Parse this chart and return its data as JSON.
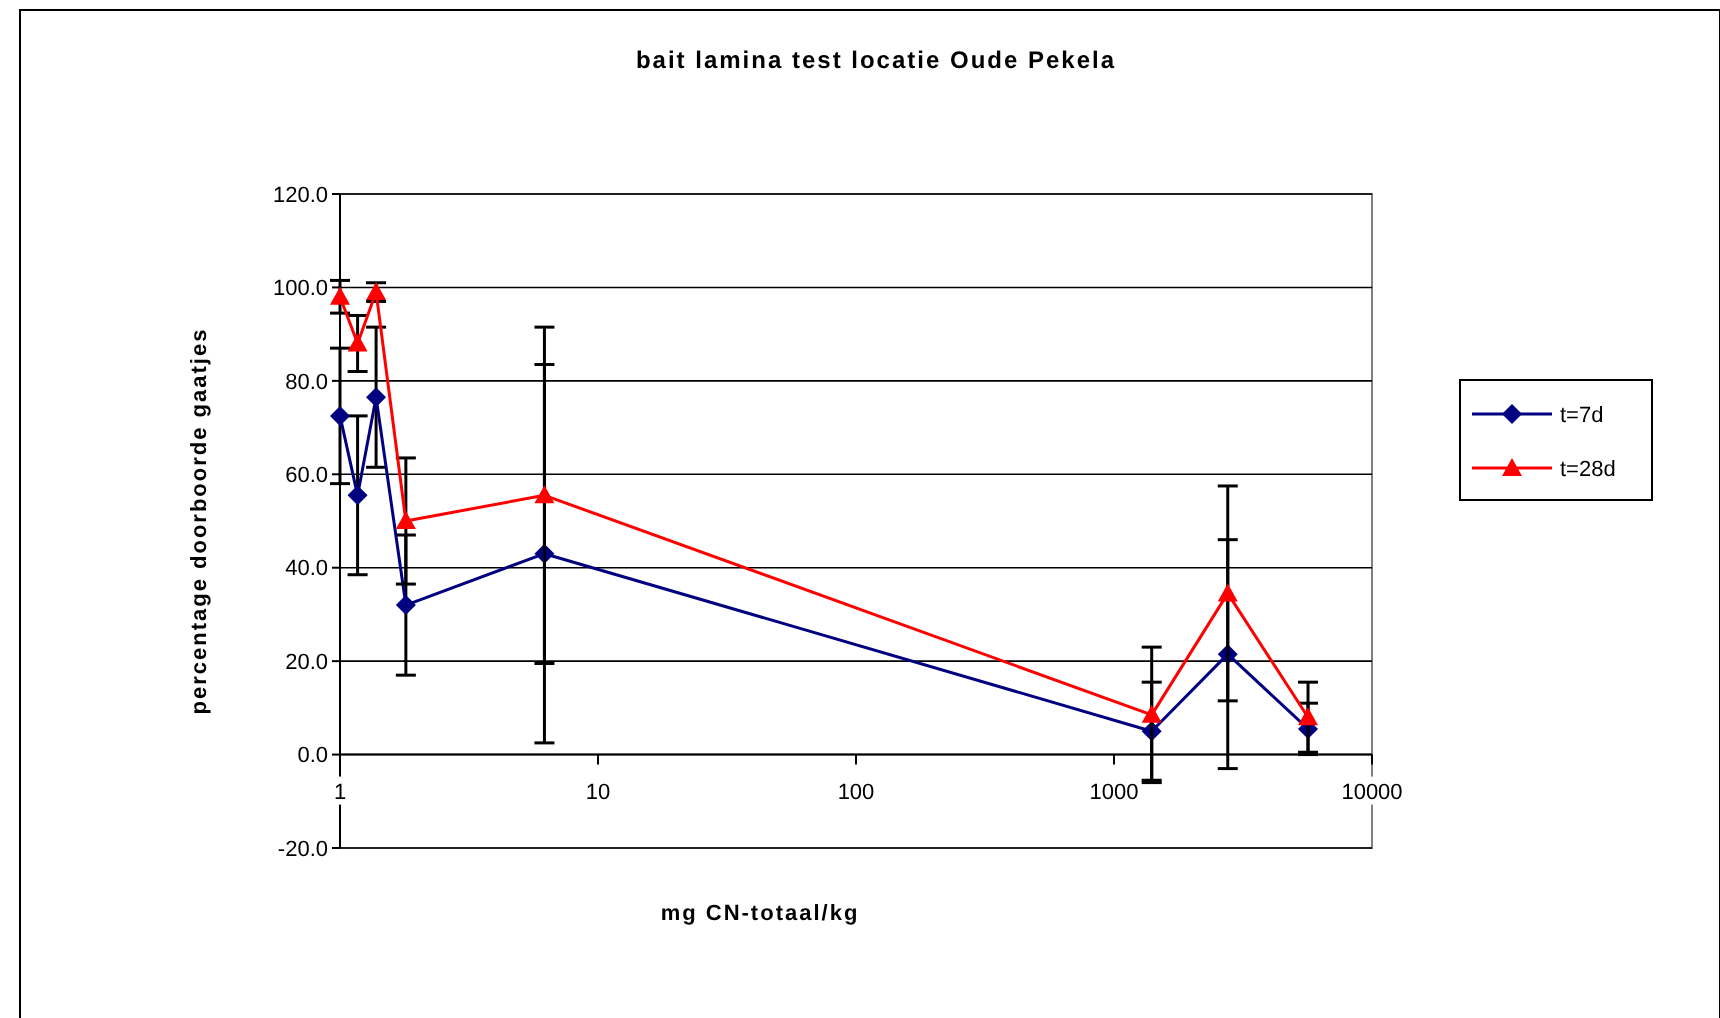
{
  "chart_data": {
    "type": "line",
    "title": "bait lamina test locatie Oude Pekela",
    "xlabel": "mg CN-totaal/kg",
    "ylabel": "percentage doorboorde gaatjes",
    "x": [
      1,
      1.17,
      1.38,
      1.8,
      6.2,
      1400,
      2760,
      5650
    ],
    "series": [
      {
        "name": "t=7d",
        "color": "#000080",
        "marker": "diamond",
        "values": [
          72.5,
          55.5,
          76.5,
          32,
          43,
          5,
          21.5,
          5.5
        ],
        "errors": [
          14.5,
          17,
          15,
          15,
          40.5,
          10.5,
          24.5,
          5.5
        ]
      },
      {
        "name": "t=28d",
        "color": "#ff0000",
        "marker": "triangle",
        "values": [
          98,
          88,
          99,
          50,
          55.5,
          8.5,
          34.5,
          8
        ],
        "errors": [
          3.5,
          6,
          2,
          13.5,
          36,
          14.5,
          23,
          7.5
        ]
      }
    ],
    "log": "x",
    "xlim": [
      1,
      10000
    ],
    "xticks": [
      1,
      10,
      100,
      1000,
      10000
    ],
    "ylim": [
      -20,
      120
    ],
    "yticks": [
      {
        "value": -20,
        "label": "-20.0"
      },
      {
        "value": 0,
        "label": "0.0"
      },
      {
        "value": 20,
        "label": "20.0"
      },
      {
        "value": 40,
        "label": "40.0"
      },
      {
        "value": 60,
        "label": "60.0"
      },
      {
        "value": 80,
        "label": "80.0"
      },
      {
        "value": 100,
        "label": "100.0"
      },
      {
        "value": 120,
        "label": "120.0"
      }
    ],
    "grid": "y",
    "legend": "right",
    "line_style": "solid"
  }
}
